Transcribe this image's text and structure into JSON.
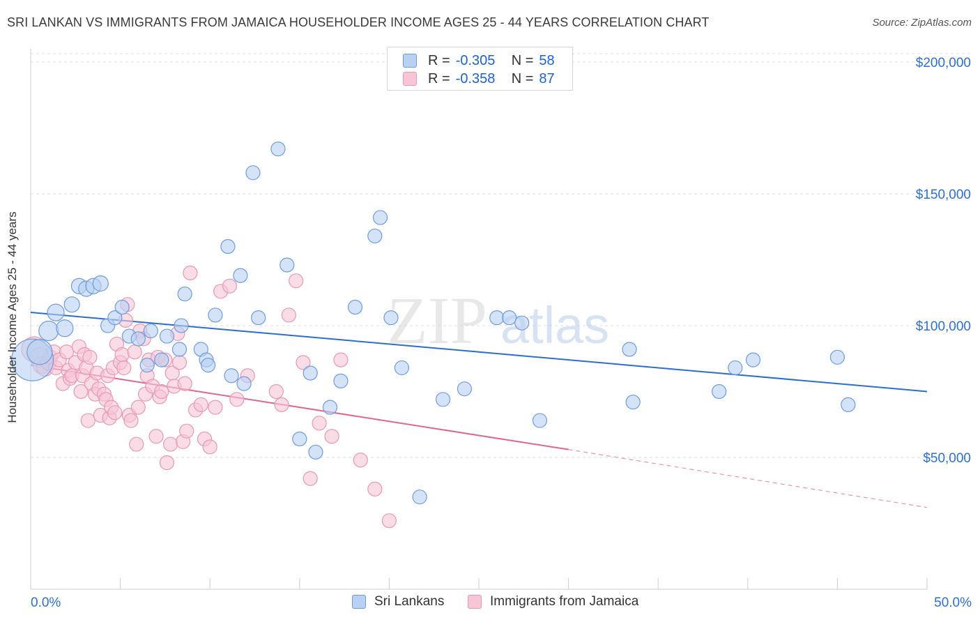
{
  "header": {
    "title": "SRI LANKAN VS IMMIGRANTS FROM JAMAICA HOUSEHOLDER INCOME AGES 25 - 44 YEARS CORRELATION CHART",
    "source": "Source: ZipAtlas.com"
  },
  "watermark": {
    "part1": "ZIP",
    "part2": "atlas"
  },
  "legend_top": {
    "rows": [
      {
        "r_label": "R =",
        "r_value": "-0.305",
        "n_label": "N =",
        "n_value": "58"
      },
      {
        "r_label": "R =",
        "r_value": "-0.358",
        "n_label": "N =",
        "n_value": "87"
      }
    ]
  },
  "legend_bottom": {
    "items": [
      "Sri Lankans",
      "Immigrants from Jamaica"
    ]
  },
  "colors": {
    "blue_fill": "#b8d0f3",
    "blue_stroke": "#6f9be0",
    "blue_line": "#2a6fd0",
    "pink_fill": "#f7c5d6",
    "pink_stroke": "#e898b4",
    "pink_line": "#e06690",
    "axis_text_blue": "#2f6fd0",
    "grid": "#dddddd"
  },
  "chart_data": {
    "type": "scatter",
    "title": "SRI LANKAN VS IMMIGRANTS FROM JAMAICA HOUSEHOLDER INCOME AGES 25 - 44 YEARS CORRELATION CHART",
    "xlabel": "",
    "ylabel": "Householder Income Ages 25 - 44 years",
    "xlim": [
      0,
      50
    ],
    "ylim": [
      0,
      205000
    ],
    "x_tick_labels": [
      "0.0%",
      "50.0%"
    ],
    "y_ticks": [
      50000,
      100000,
      150000,
      200000
    ],
    "y_tick_labels": [
      "$50,000",
      "$100,000",
      "$150,000",
      "$200,000"
    ],
    "grid": "horizontal dashed",
    "legend_placement": "bottom",
    "series": [
      {
        "name": "Sri Lankans",
        "r": -0.305,
        "n": 58,
        "trend": {
          "x0": 0,
          "y0": 105000,
          "x1": 50,
          "y1": 75000
        },
        "points": [
          [
            0.1,
            87000,
            30
          ],
          [
            0.5,
            90000,
            18
          ],
          [
            1.0,
            98000,
            14
          ],
          [
            1.9,
            99000,
            12
          ],
          [
            1.4,
            105000,
            12
          ],
          [
            2.3,
            108000,
            11
          ],
          [
            2.7,
            115000,
            11
          ],
          [
            3.1,
            114000,
            11
          ],
          [
            3.5,
            115000,
            11
          ],
          [
            3.9,
            116000,
            11
          ],
          [
            4.3,
            100000,
            10
          ],
          [
            4.7,
            103000,
            10
          ],
          [
            5.1,
            107000,
            10
          ],
          [
            5.5,
            96000,
            10
          ],
          [
            6.0,
            95000,
            10
          ],
          [
            6.5,
            85000,
            10
          ],
          [
            6.7,
            98000,
            10
          ],
          [
            7.3,
            87000,
            10
          ],
          [
            7.6,
            96000,
            10
          ],
          [
            8.3,
            91000,
            10
          ],
          [
            8.4,
            100000,
            10
          ],
          [
            8.6,
            112000,
            10
          ],
          [
            9.5,
            91000,
            10
          ],
          [
            9.8,
            87000,
            10
          ],
          [
            9.9,
            85000,
            10
          ],
          [
            10.3,
            104000,
            10
          ],
          [
            11.0,
            130000,
            10
          ],
          [
            11.2,
            81000,
            10
          ],
          [
            11.7,
            119000,
            10
          ],
          [
            11.9,
            78000,
            10
          ],
          [
            12.4,
            158000,
            10
          ],
          [
            12.7,
            103000,
            10
          ],
          [
            13.8,
            167000,
            10
          ],
          [
            14.3,
            123000,
            10
          ],
          [
            15.0,
            57000,
            10
          ],
          [
            15.6,
            82000,
            10
          ],
          [
            15.9,
            52000,
            10
          ],
          [
            16.7,
            69000,
            10
          ],
          [
            17.3,
            79000,
            10
          ],
          [
            18.1,
            107000,
            10
          ],
          [
            19.2,
            134000,
            10
          ],
          [
            19.5,
            141000,
            10
          ],
          [
            20.1,
            103000,
            10
          ],
          [
            20.7,
            84000,
            10
          ],
          [
            21.7,
            35000,
            10
          ],
          [
            23.0,
            72000,
            10
          ],
          [
            24.2,
            76000,
            10
          ],
          [
            26.0,
            103000,
            10
          ],
          [
            26.7,
            103000,
            10
          ],
          [
            27.4,
            101000,
            10
          ],
          [
            28.4,
            64000,
            10
          ],
          [
            33.4,
            91000,
            10
          ],
          [
            33.6,
            71000,
            10
          ],
          [
            38.4,
            75000,
            10
          ],
          [
            39.3,
            84000,
            10
          ],
          [
            40.3,
            87000,
            10
          ],
          [
            45.0,
            88000,
            10
          ],
          [
            45.6,
            70000,
            10
          ]
        ]
      },
      {
        "name": "Immigrants from Jamaica",
        "r": -0.358,
        "n": 87,
        "trend": {
          "x0": 0,
          "y0": 85000,
          "x1": 30,
          "y1": 53000,
          "dashed_to_x": 50,
          "dashed_to_y": 31000
        },
        "points": [
          [
            0.2,
            91000,
            18
          ],
          [
            0.5,
            88000,
            14
          ],
          [
            0.6,
            85000,
            12
          ],
          [
            0.8,
            84000,
            12
          ],
          [
            1.0,
            86000,
            11
          ],
          [
            1.1,
            88000,
            10
          ],
          [
            1.3,
            90000,
            10
          ],
          [
            1.4,
            84000,
            10
          ],
          [
            1.6,
            87000,
            10
          ],
          [
            1.8,
            78000,
            10
          ],
          [
            2.0,
            90000,
            10
          ],
          [
            2.1,
            83000,
            10
          ],
          [
            2.2,
            80000,
            10
          ],
          [
            2.3,
            81000,
            10
          ],
          [
            2.5,
            86000,
            10
          ],
          [
            2.7,
            92000,
            10
          ],
          [
            2.8,
            75000,
            10
          ],
          [
            2.9,
            81000,
            10
          ],
          [
            3.0,
            89000,
            10
          ],
          [
            3.1,
            84000,
            10
          ],
          [
            3.2,
            64000,
            10
          ],
          [
            3.3,
            88000,
            10
          ],
          [
            3.4,
            78000,
            10
          ],
          [
            3.6,
            74000,
            10
          ],
          [
            3.7,
            82000,
            10
          ],
          [
            3.8,
            76000,
            10
          ],
          [
            3.9,
            66000,
            10
          ],
          [
            4.1,
            74000,
            10
          ],
          [
            4.2,
            72000,
            10
          ],
          [
            4.3,
            81000,
            10
          ],
          [
            4.4,
            65000,
            10
          ],
          [
            4.5,
            69000,
            10
          ],
          [
            4.6,
            84000,
            10
          ],
          [
            4.7,
            67000,
            10
          ],
          [
            4.8,
            93000,
            10
          ],
          [
            5.0,
            86000,
            10
          ],
          [
            5.1,
            89000,
            10
          ],
          [
            5.2,
            84000,
            10
          ],
          [
            5.3,
            102000,
            10
          ],
          [
            5.4,
            108000,
            10
          ],
          [
            5.5,
            66000,
            10
          ],
          [
            5.6,
            64000,
            10
          ],
          [
            5.8,
            90000,
            10
          ],
          [
            5.9,
            55000,
            10
          ],
          [
            6.0,
            69000,
            10
          ],
          [
            6.1,
            98000,
            10
          ],
          [
            6.3,
            95000,
            10
          ],
          [
            6.4,
            74000,
            10
          ],
          [
            6.5,
            81000,
            10
          ],
          [
            6.6,
            87000,
            10
          ],
          [
            6.8,
            77000,
            10
          ],
          [
            7.0,
            58000,
            10
          ],
          [
            7.1,
            88000,
            10
          ],
          [
            7.2,
            73000,
            10
          ],
          [
            7.3,
            75000,
            10
          ],
          [
            7.5,
            87000,
            10
          ],
          [
            7.6,
            48000,
            10
          ],
          [
            7.8,
            55000,
            10
          ],
          [
            7.9,
            82000,
            10
          ],
          [
            8.0,
            77000,
            10
          ],
          [
            8.2,
            97000,
            10
          ],
          [
            8.3,
            86000,
            10
          ],
          [
            8.5,
            56000,
            10
          ],
          [
            8.6,
            78000,
            10
          ],
          [
            8.7,
            60000,
            10
          ],
          [
            8.9,
            120000,
            10
          ],
          [
            9.2,
            68000,
            10
          ],
          [
            9.5,
            70000,
            10
          ],
          [
            9.7,
            57000,
            10
          ],
          [
            10.0,
            54000,
            10
          ],
          [
            10.3,
            69000,
            10
          ],
          [
            10.6,
            113000,
            10
          ],
          [
            11.1,
            115000,
            10
          ],
          [
            11.5,
            72000,
            10
          ],
          [
            12.1,
            81000,
            10
          ],
          [
            13.7,
            75000,
            10
          ],
          [
            14.0,
            70000,
            10
          ],
          [
            14.4,
            104000,
            10
          ],
          [
            14.8,
            117000,
            10
          ],
          [
            15.2,
            86000,
            10
          ],
          [
            15.6,
            42000,
            10
          ],
          [
            16.1,
            63000,
            10
          ],
          [
            16.8,
            58000,
            10
          ],
          [
            17.3,
            87000,
            10
          ],
          [
            18.4,
            49000,
            10
          ],
          [
            19.2,
            38000,
            10
          ],
          [
            20.0,
            26000,
            10
          ]
        ]
      }
    ]
  }
}
